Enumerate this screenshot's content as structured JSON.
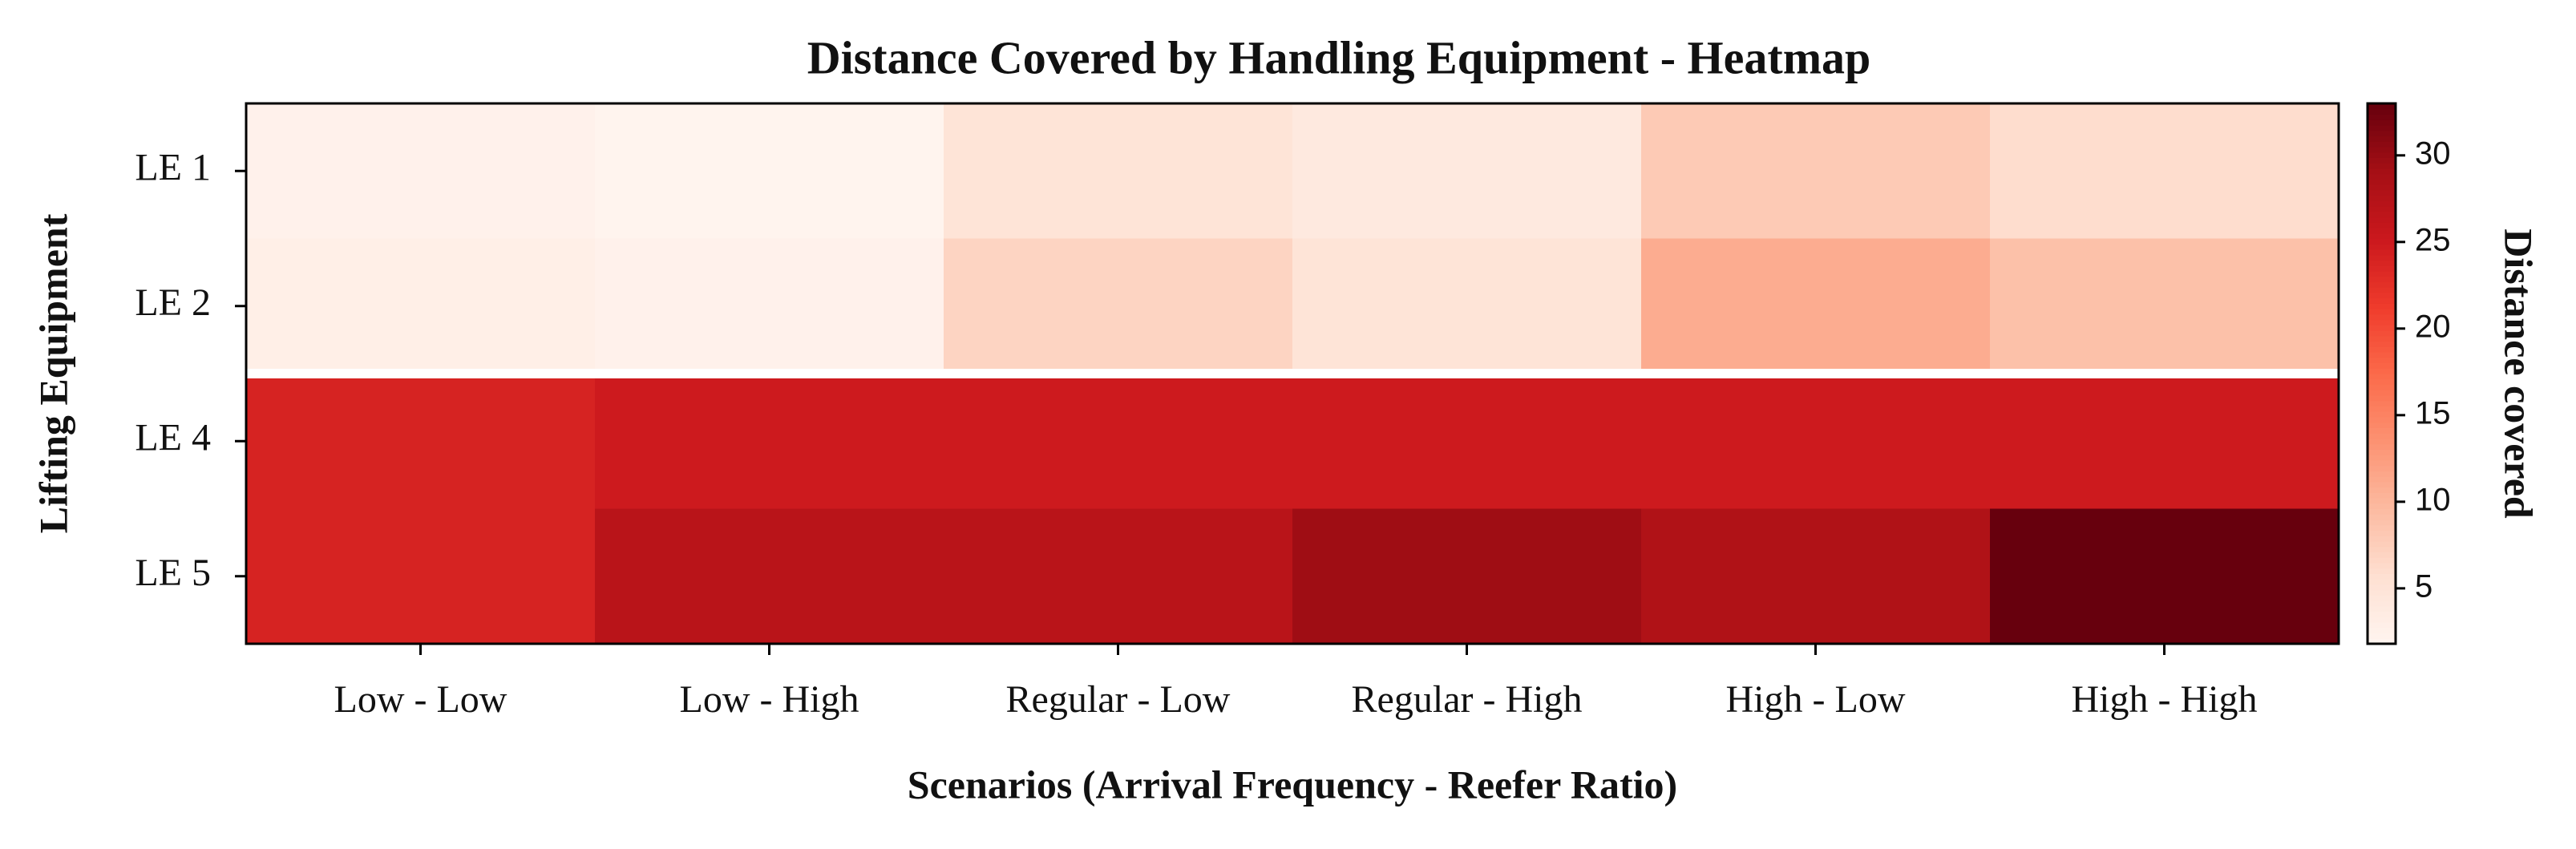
{
  "chart_data": {
    "type": "heatmap",
    "title": "Distance Covered by Handling Equipment - Heatmap",
    "xlabel": "Scenarios (Arrival Frequency - Reefer Ratio)",
    "ylabel": "Lifting Equipment",
    "colorbar_label": "Distance covered",
    "x_categories": [
      "Low - Low",
      "Low - High",
      "Regular - Low",
      "Regular - High",
      "High - Low",
      "High - High"
    ],
    "y_categories": [
      "LE 1",
      "LE 2",
      "LE 4",
      "LE 5"
    ],
    "values": [
      [
        2.5,
        2,
        5,
        4,
        8,
        6
      ],
      [
        3,
        2.5,
        7,
        5,
        11,
        9
      ],
      [
        24,
        25,
        25,
        25,
        25,
        25
      ],
      [
        24,
        27,
        27,
        29.5,
        28,
        33
      ]
    ],
    "colormap": "Reds",
    "clim": [
      1.8,
      33
    ],
    "cticks": [
      5,
      10,
      15,
      20,
      25,
      30
    ]
  }
}
